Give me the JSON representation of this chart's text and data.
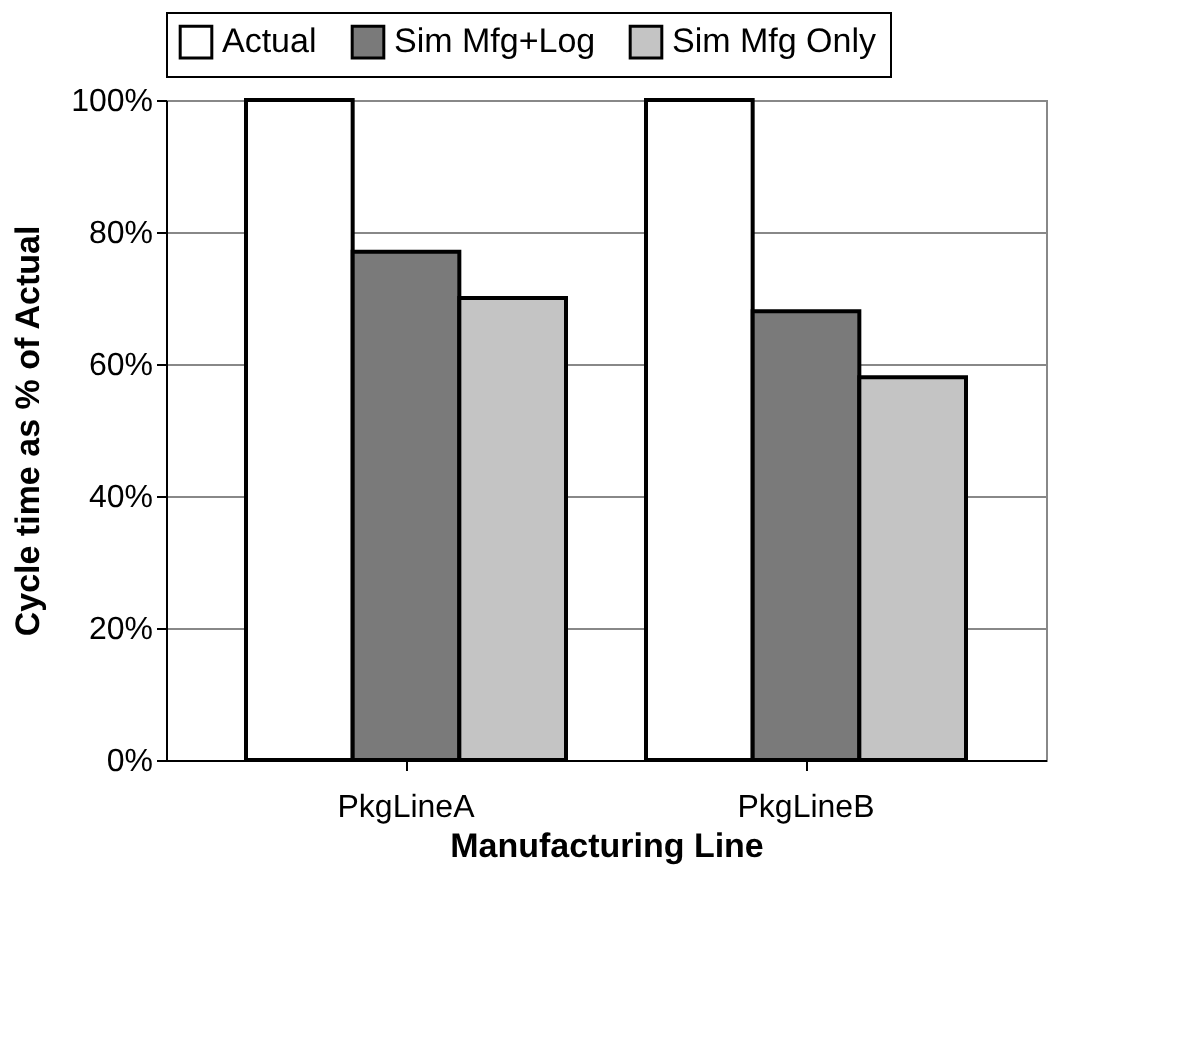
{
  "chart_data": {
    "type": "bar",
    "xlabel": "Manufacturing Line",
    "ylabel": "Cycle time as % of Actual",
    "categories": [
      "PkgLineA",
      "PkgLineB"
    ],
    "series": [
      {
        "name": "Actual",
        "color": "#ffffff",
        "values": [
          100,
          100
        ]
      },
      {
        "name": "Sim Mfg+Log",
        "color": "#7a7a7a",
        "values": [
          77,
          68
        ]
      },
      {
        "name": "Sim Mfg Only",
        "color": "#c4c4c4",
        "values": [
          70,
          58
        ]
      }
    ],
    "ylim": [
      0,
      100
    ],
    "yticks": [
      {
        "value": 0,
        "label": "0%"
      },
      {
        "value": 20,
        "label": "20%"
      },
      {
        "value": 40,
        "label": "40%"
      },
      {
        "value": 60,
        "label": "60%"
      },
      {
        "value": 80,
        "label": "80%"
      },
      {
        "value": 100,
        "label": "100%"
      }
    ],
    "grid": "y",
    "legend": "top"
  }
}
